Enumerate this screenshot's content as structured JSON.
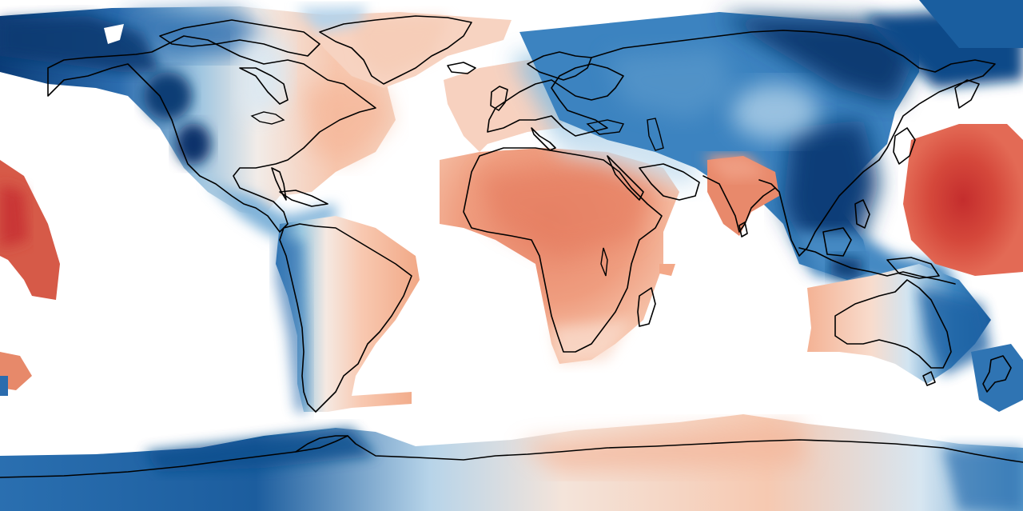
{
  "map": {
    "projection": "equirectangular",
    "colormap": "RdBu",
    "colors": {
      "deep_blue": "#08306b",
      "blue": "#2171b5",
      "mid_blue": "#4a90c4",
      "light_blue": "#9ecae1",
      "pale_blue": "#d4e6f2",
      "neutral": "#f7f4f0",
      "pale_red": "#fbd7c4",
      "light_red": "#f4a582",
      "red": "#e7896a",
      "dark_red": "#d6604d",
      "deep_red": "#c93434",
      "coastline": "#000000",
      "background": "#ffffff"
    }
  }
}
